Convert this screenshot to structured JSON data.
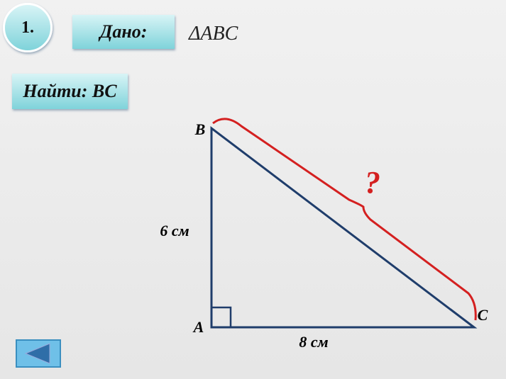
{
  "header": {
    "number": "1.",
    "given_label": "Дано:",
    "given_value": "ΔABC",
    "find": "Найти: BC"
  },
  "figure": {
    "vertices": {
      "A": "A",
      "B": "B",
      "C": "C"
    },
    "sides": {
      "AB": "6 см",
      "AC": "8 см"
    },
    "unknown": "?"
  }
}
